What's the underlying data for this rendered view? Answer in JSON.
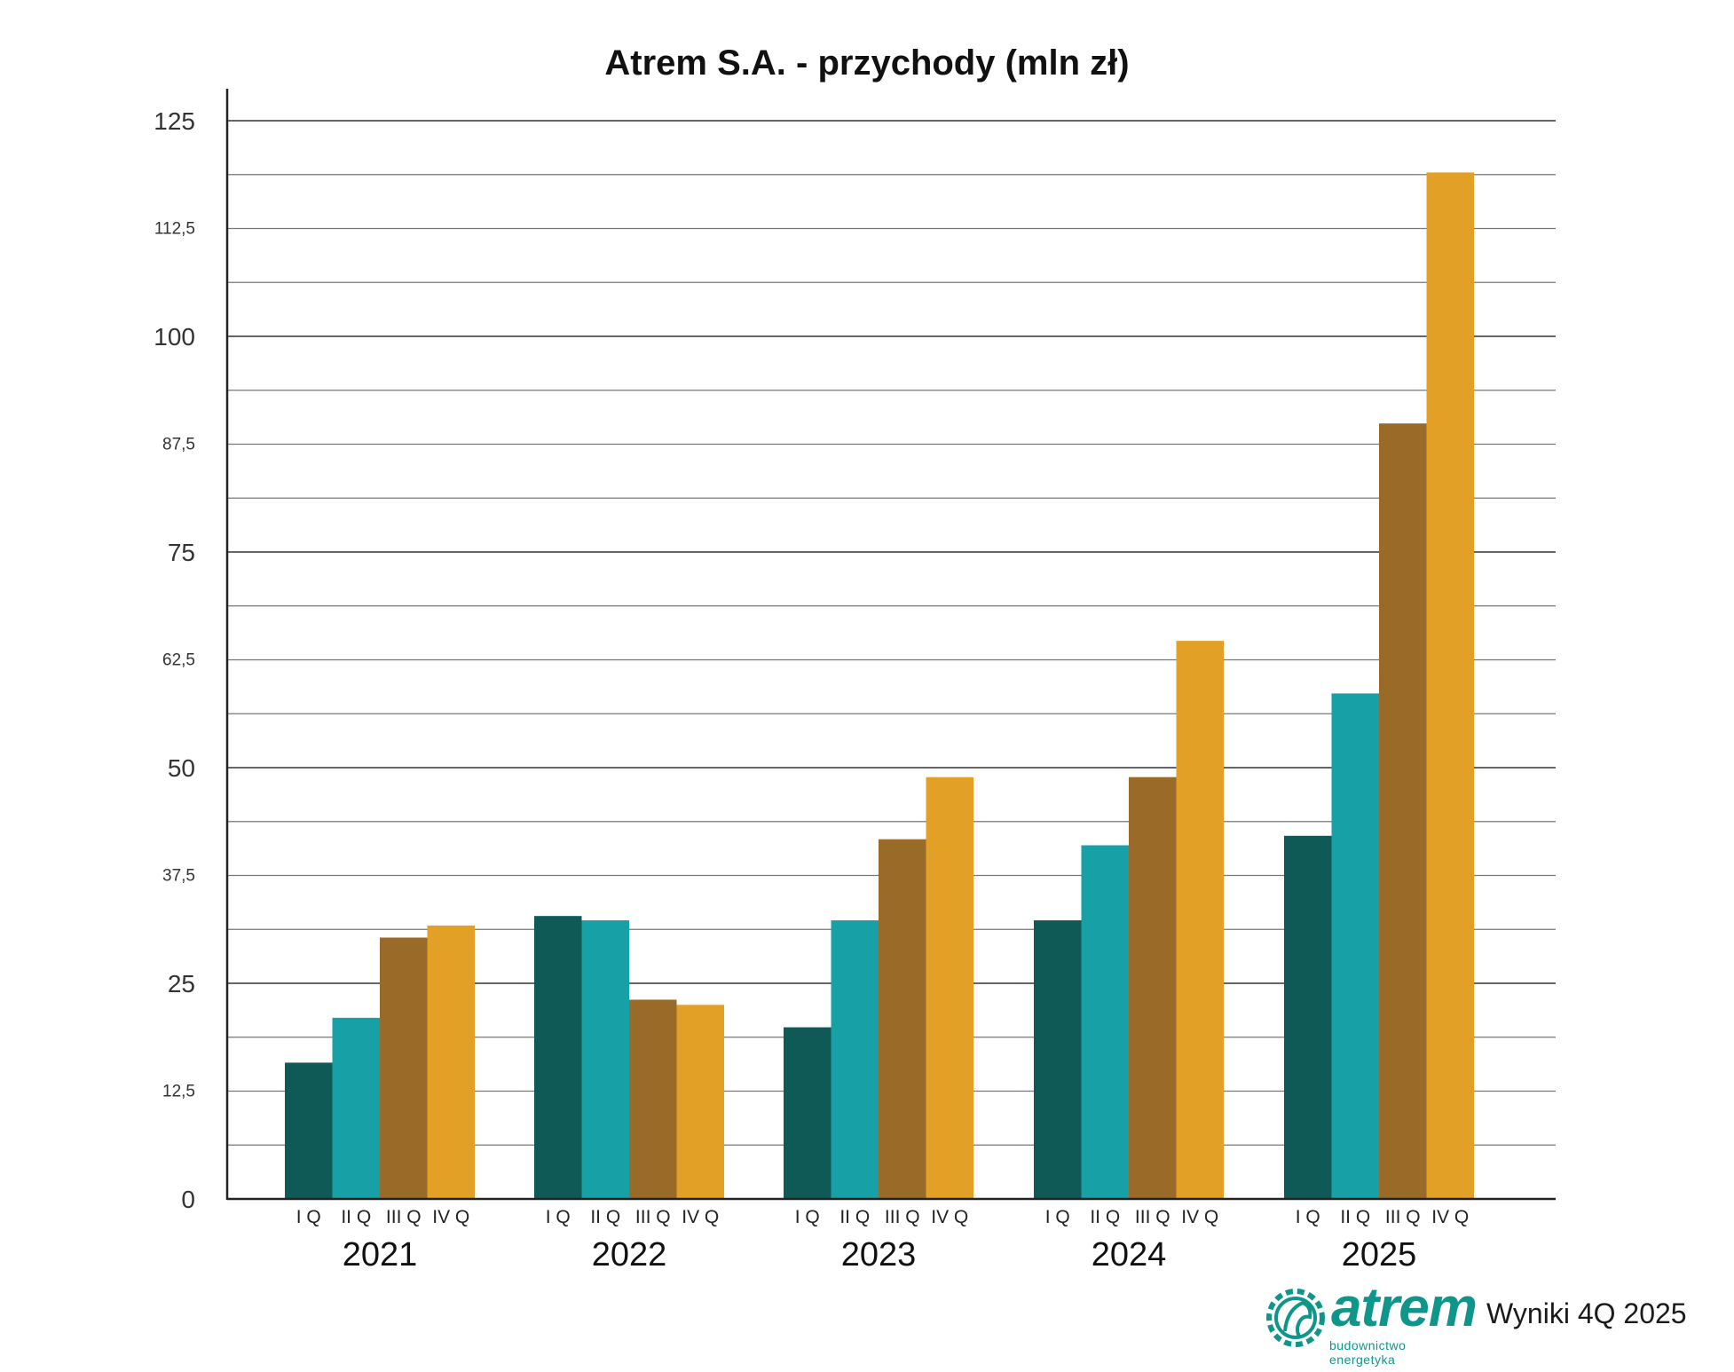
{
  "chart_data": {
    "type": "bar",
    "title": "Atrem S.A. - przychody (mln zł)",
    "ylim": [
      0,
      125
    ],
    "yticks": [
      "0",
      "12,5",
      "25",
      "37,5",
      "50",
      "62,5",
      "75",
      "87,5",
      "100",
      "112,5",
      "125"
    ],
    "grid": true,
    "quarter_labels": [
      "I Q",
      "II Q",
      "III Q",
      "IV Q"
    ],
    "categories": [
      "2021",
      "2022",
      "2023",
      "2024",
      "2025"
    ],
    "series": [
      {
        "values": [
          15.8,
          32.8,
          19.9,
          32.3,
          42.1
        ],
        "color": "#0f5957"
      },
      {
        "values": [
          21.0,
          32.3,
          32.3,
          41.0,
          58.6
        ],
        "color": "#17a0a5"
      },
      {
        "values": [
          30.3,
          23.1,
          41.7,
          48.9,
          89.9
        ],
        "color": "#9a6a29"
      },
      {
        "values": [
          31.7,
          22.5,
          48.9,
          64.7,
          119.0
        ],
        "color": "#e2a027"
      }
    ]
  },
  "footer": {
    "logo_text": "atrem",
    "logo_subtext": "budownictwo energetyka",
    "label": "Wyniki 4Q 2025",
    "brand_color": "#0f968b"
  }
}
